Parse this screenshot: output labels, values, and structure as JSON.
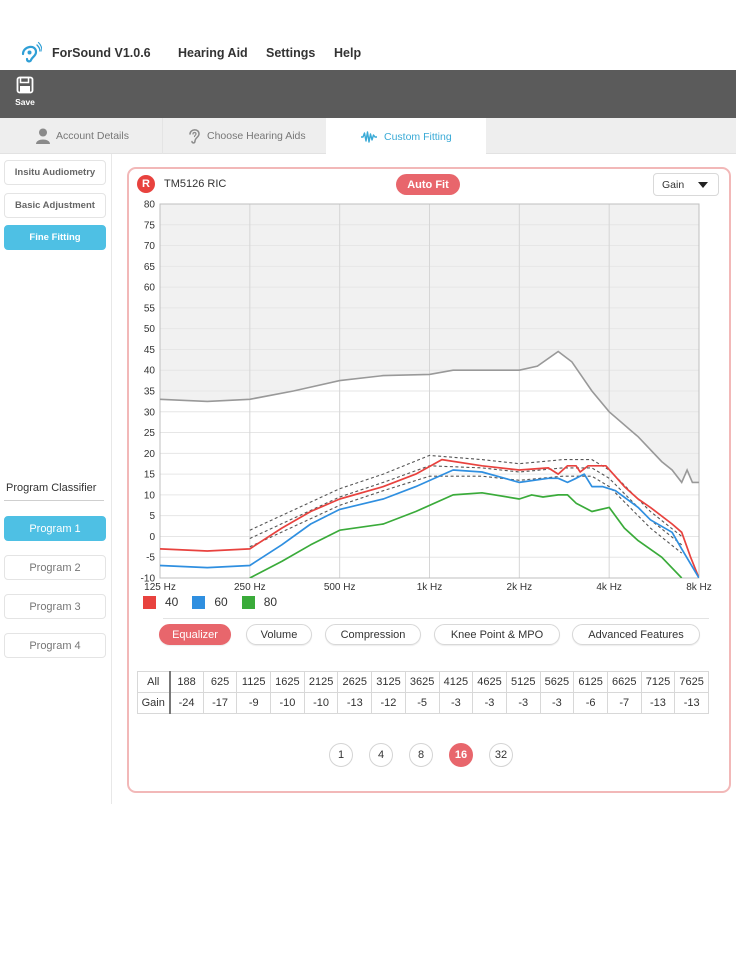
{
  "app": {
    "title": "ForSound V1.0.6",
    "menu": [
      "Hearing Aid",
      "Settings",
      "Help"
    ]
  },
  "toolbar": {
    "save_label": "Save"
  },
  "tabs": [
    {
      "label": "Account Details",
      "icon": "person-icon",
      "active": false
    },
    {
      "label": "Choose Hearing Aids",
      "icon": "ear-icon",
      "active": false
    },
    {
      "label": "Custom Fitting",
      "icon": "sound-wave-icon",
      "active": true
    }
  ],
  "sidebar": {
    "items": [
      {
        "label": "Insitu Audiometry",
        "active": false
      },
      {
        "label": "Basic Adjustment",
        "active": false
      },
      {
        "label": "Fine Fitting",
        "active": true
      }
    ],
    "program_classifier_title": "Program Classifier",
    "programs": [
      {
        "label": "Program 1",
        "active": true
      },
      {
        "label": "Program 2",
        "active": false
      },
      {
        "label": "Program 3",
        "active": false
      },
      {
        "label": "Program 4",
        "active": false
      }
    ]
  },
  "panel": {
    "side_badge": "R",
    "device_name": "TM5126 RIC",
    "auto_fit_label": "Auto Fit",
    "view_select": "Gain",
    "feature_tabs": [
      {
        "label": "Equalizer",
        "active": true
      },
      {
        "label": "Volume",
        "active": false
      },
      {
        "label": "Compression",
        "active": false
      },
      {
        "label": "Knee Point & MPO",
        "active": false
      },
      {
        "label": "Advanced Features",
        "active": false
      }
    ],
    "table": {
      "header_label": "All",
      "row_label": "Gain",
      "frequencies": [
        "188",
        "625",
        "1125",
        "1625",
        "2125",
        "2625",
        "3125",
        "3625",
        "4125",
        "4625",
        "5125",
        "5625",
        "6125",
        "6625",
        "7125",
        "7625"
      ],
      "gains": [
        "-24",
        "-17",
        "-9",
        "-10",
        "-10",
        "-13",
        "-12",
        "-5",
        "-3",
        "-3",
        "-3",
        "-3",
        "-6",
        "-7",
        "-13",
        "-13"
      ]
    },
    "pagination": {
      "pages": [
        "1",
        "4",
        "8",
        "16",
        "32"
      ],
      "active": "16"
    }
  },
  "colors": {
    "accent_blue": "#4ec0e4",
    "accent_red": "#e8666c",
    "toolbar_bg": "#5b5b5b"
  },
  "chart_data": {
    "type": "line",
    "x_scale": "log",
    "x_ticks": [
      {
        "value": 125,
        "label": "125 Hz"
      },
      {
        "value": 250,
        "label": "250 Hz"
      },
      {
        "value": 500,
        "label": "500 Hz"
      },
      {
        "value": 1000,
        "label": "1k Hz"
      },
      {
        "value": 2000,
        "label": "2k Hz"
      },
      {
        "value": 4000,
        "label": "4k Hz"
      },
      {
        "value": 8000,
        "label": "8k Hz"
      }
    ],
    "ylim": [
      -10,
      80
    ],
    "y_ticks": [
      -10,
      -5,
      0,
      5,
      10,
      15,
      20,
      25,
      30,
      35,
      40,
      45,
      50,
      55,
      60,
      65,
      70,
      75,
      80
    ],
    "grid": true,
    "legend_position": "bottom-left",
    "mpo_curve": {
      "color": "#999999",
      "shaded_above": true,
      "points": [
        [
          125,
          33
        ],
        [
          180,
          32.5
        ],
        [
          250,
          33
        ],
        [
          350,
          35
        ],
        [
          500,
          37.5
        ],
        [
          700,
          38.7
        ],
        [
          1000,
          39
        ],
        [
          1200,
          40
        ],
        [
          1500,
          40
        ],
        [
          2000,
          40
        ],
        [
          2300,
          41
        ],
        [
          2700,
          44.5
        ],
        [
          3000,
          42
        ],
        [
          3500,
          35
        ],
        [
          4000,
          30
        ],
        [
          5000,
          24
        ],
        [
          6000,
          18
        ],
        [
          6500,
          16
        ],
        [
          7000,
          13
        ],
        [
          7300,
          16
        ],
        [
          7600,
          13
        ],
        [
          8000,
          13
        ]
      ]
    },
    "target_lines": [
      {
        "style": "dashed",
        "color": "#555555",
        "points": [
          [
            250,
            1.5
          ],
          [
            500,
            11.5
          ],
          [
            700,
            15
          ],
          [
            1000,
            19.5
          ],
          [
            1500,
            18.5
          ],
          [
            2000,
            17.5
          ],
          [
            2800,
            18.5
          ],
          [
            3500,
            18.5
          ],
          [
            4000,
            16
          ],
          [
            5500,
            6
          ],
          [
            7000,
            0
          ]
        ]
      },
      {
        "style": "dashed",
        "color": "#555555",
        "points": [
          [
            250,
            -0.5
          ],
          [
            500,
            9.5
          ],
          [
            700,
            13
          ],
          [
            1000,
            17
          ],
          [
            1500,
            16.5
          ],
          [
            2000,
            15.5
          ],
          [
            2800,
            16.5
          ],
          [
            3500,
            16.5
          ],
          [
            4000,
            14
          ],
          [
            5500,
            4
          ],
          [
            7000,
            -2
          ]
        ]
      },
      {
        "style": "dashed",
        "color": "#555555",
        "points": [
          [
            250,
            -2.5
          ],
          [
            500,
            7.5
          ],
          [
            700,
            11
          ],
          [
            1000,
            14.5
          ],
          [
            1500,
            14.5
          ],
          [
            2000,
            13.5
          ],
          [
            2800,
            14.5
          ],
          [
            3500,
            14.5
          ],
          [
            4000,
            12
          ],
          [
            5500,
            2
          ],
          [
            7000,
            -4
          ]
        ]
      }
    ],
    "series": [
      {
        "name": "40",
        "color": "#e8423e",
        "points": [
          [
            125,
            -3
          ],
          [
            180,
            -3.5
          ],
          [
            250,
            -3
          ],
          [
            320,
            2
          ],
          [
            400,
            6
          ],
          [
            500,
            9
          ],
          [
            700,
            12
          ],
          [
            900,
            15
          ],
          [
            1100,
            18.5
          ],
          [
            1500,
            17
          ],
          [
            2000,
            16
          ],
          [
            2500,
            16.5
          ],
          [
            2700,
            15
          ],
          [
            2900,
            17
          ],
          [
            3100,
            17
          ],
          [
            3200,
            15.5
          ],
          [
            3400,
            17
          ],
          [
            3900,
            17
          ],
          [
            4500,
            12
          ],
          [
            5000,
            9
          ],
          [
            5500,
            7
          ],
          [
            6500,
            3
          ],
          [
            7000,
            1
          ],
          [
            7500,
            -5
          ],
          [
            8000,
            -10
          ]
        ]
      },
      {
        "name": "60",
        "color": "#2f8fe0",
        "points": [
          [
            125,
            -7
          ],
          [
            180,
            -7.5
          ],
          [
            250,
            -7
          ],
          [
            320,
            -2
          ],
          [
            400,
            3
          ],
          [
            500,
            6.5
          ],
          [
            700,
            9
          ],
          [
            900,
            12
          ],
          [
            1200,
            16
          ],
          [
            1500,
            15.5
          ],
          [
            2000,
            13
          ],
          [
            2500,
            14
          ],
          [
            2700,
            14
          ],
          [
            2900,
            13
          ],
          [
            3100,
            14
          ],
          [
            3300,
            15
          ],
          [
            3500,
            12
          ],
          [
            3800,
            12
          ],
          [
            4200,
            11
          ],
          [
            5000,
            7
          ],
          [
            5500,
            4
          ],
          [
            6500,
            1
          ],
          [
            7000,
            -3
          ],
          [
            8000,
            -10
          ]
        ]
      },
      {
        "name": "80",
        "color": "#3aab3a",
        "points": [
          [
            250,
            -10
          ],
          [
            320,
            -6
          ],
          [
            400,
            -2
          ],
          [
            500,
            1.5
          ],
          [
            700,
            3
          ],
          [
            900,
            6
          ],
          [
            1200,
            10
          ],
          [
            1500,
            10.5
          ],
          [
            2000,
            9
          ],
          [
            2200,
            10
          ],
          [
            2400,
            9.5
          ],
          [
            2700,
            10
          ],
          [
            2900,
            10
          ],
          [
            3100,
            8
          ],
          [
            3500,
            6
          ],
          [
            4000,
            7
          ],
          [
            4500,
            2
          ],
          [
            5000,
            -1
          ],
          [
            6000,
            -5
          ],
          [
            7000,
            -10
          ]
        ]
      }
    ],
    "legend": [
      "40",
      "60",
      "80"
    ]
  }
}
